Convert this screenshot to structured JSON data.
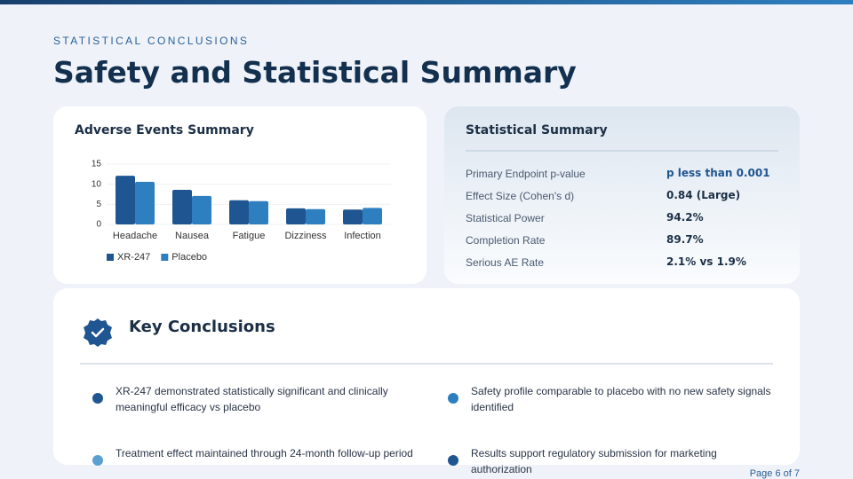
{
  "header": {
    "kicker": "STATISTICAL CONCLUSIONS",
    "title": "Safety and Statistical Summary"
  },
  "chart_data": {
    "type": "bar",
    "title": "Adverse Events Summary",
    "categories": [
      "Headache",
      "Nausea",
      "Fatigue",
      "Dizziness",
      "Infection"
    ],
    "series": [
      {
        "name": "XR-247",
        "color": "#1f5591",
        "values": [
          12.1,
          8.6,
          6.0,
          4.0,
          3.7
        ]
      },
      {
        "name": "Placebo",
        "color": "#2e7fbf",
        "values": [
          10.6,
          7.1,
          5.8,
          3.8,
          4.1
        ]
      }
    ],
    "ylim": [
      0,
      15
    ],
    "yticks": [
      0,
      5,
      10,
      15
    ],
    "grid": true,
    "legend": "bottom-left"
  },
  "stats": {
    "title": "Statistical Summary",
    "rows": [
      [
        "Primary Endpoint p-value",
        "p less than 0.001"
      ],
      [
        "Effect Size (Cohen's d)",
        "0.84 (Large)"
      ],
      [
        "Statistical Power",
        "94.2%"
      ],
      [
        "Completion Rate",
        "89.7%"
      ],
      [
        "Serious AE Rate",
        "2.1% vs 1.9%"
      ]
    ]
  },
  "conclusions": {
    "title": "Key Conclusions",
    "items": [
      "XR-247 demonstrated statistically significant and clinically meaningful efficacy vs placebo",
      "Safety profile comparable to placebo with no new safety signals identified",
      "Treatment effect maintained through 24-month follow-up period",
      "Results support regulatory submission for marketing authorization"
    ]
  },
  "footer": "Page 6 of 7"
}
